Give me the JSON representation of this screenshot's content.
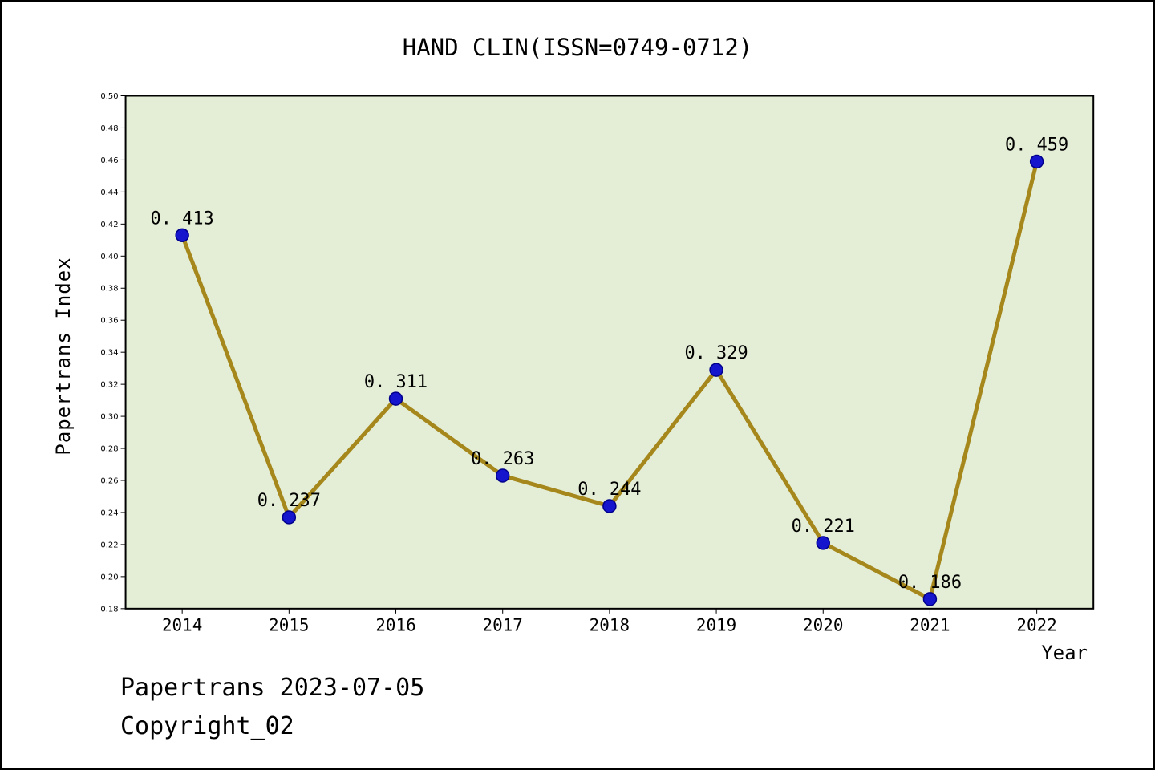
{
  "page": {
    "footer_line1": "Papertrans 2023-07-05",
    "footer_line2": "Copyright_02"
  },
  "chart_data": {
    "type": "line",
    "title": "HAND CLIN(ISSN=0749-0712)",
    "xlabel": "Year",
    "ylabel": "Papertrans Index",
    "categories": [
      "2014",
      "2015",
      "2016",
      "2017",
      "2018",
      "2019",
      "2020",
      "2021",
      "2022"
    ],
    "values": [
      0.413,
      0.237,
      0.311,
      0.263,
      0.244,
      0.329,
      0.221,
      0.186,
      0.459
    ],
    "point_labels": [
      "0. 413",
      "0. 237",
      "0. 311",
      "0. 263",
      "0. 244",
      "0. 329",
      "0. 221",
      "0. 186",
      "0. 459"
    ],
    "ylim": [
      0.18,
      0.5
    ],
    "ytick_step": 0.02,
    "grid": false,
    "legend": "none",
    "colors": {
      "line": "#a5871b",
      "marker": "#1515cd",
      "marker_edge": "#00008b",
      "plot_bg": "#e4eed6",
      "axis": "#000000"
    }
  }
}
